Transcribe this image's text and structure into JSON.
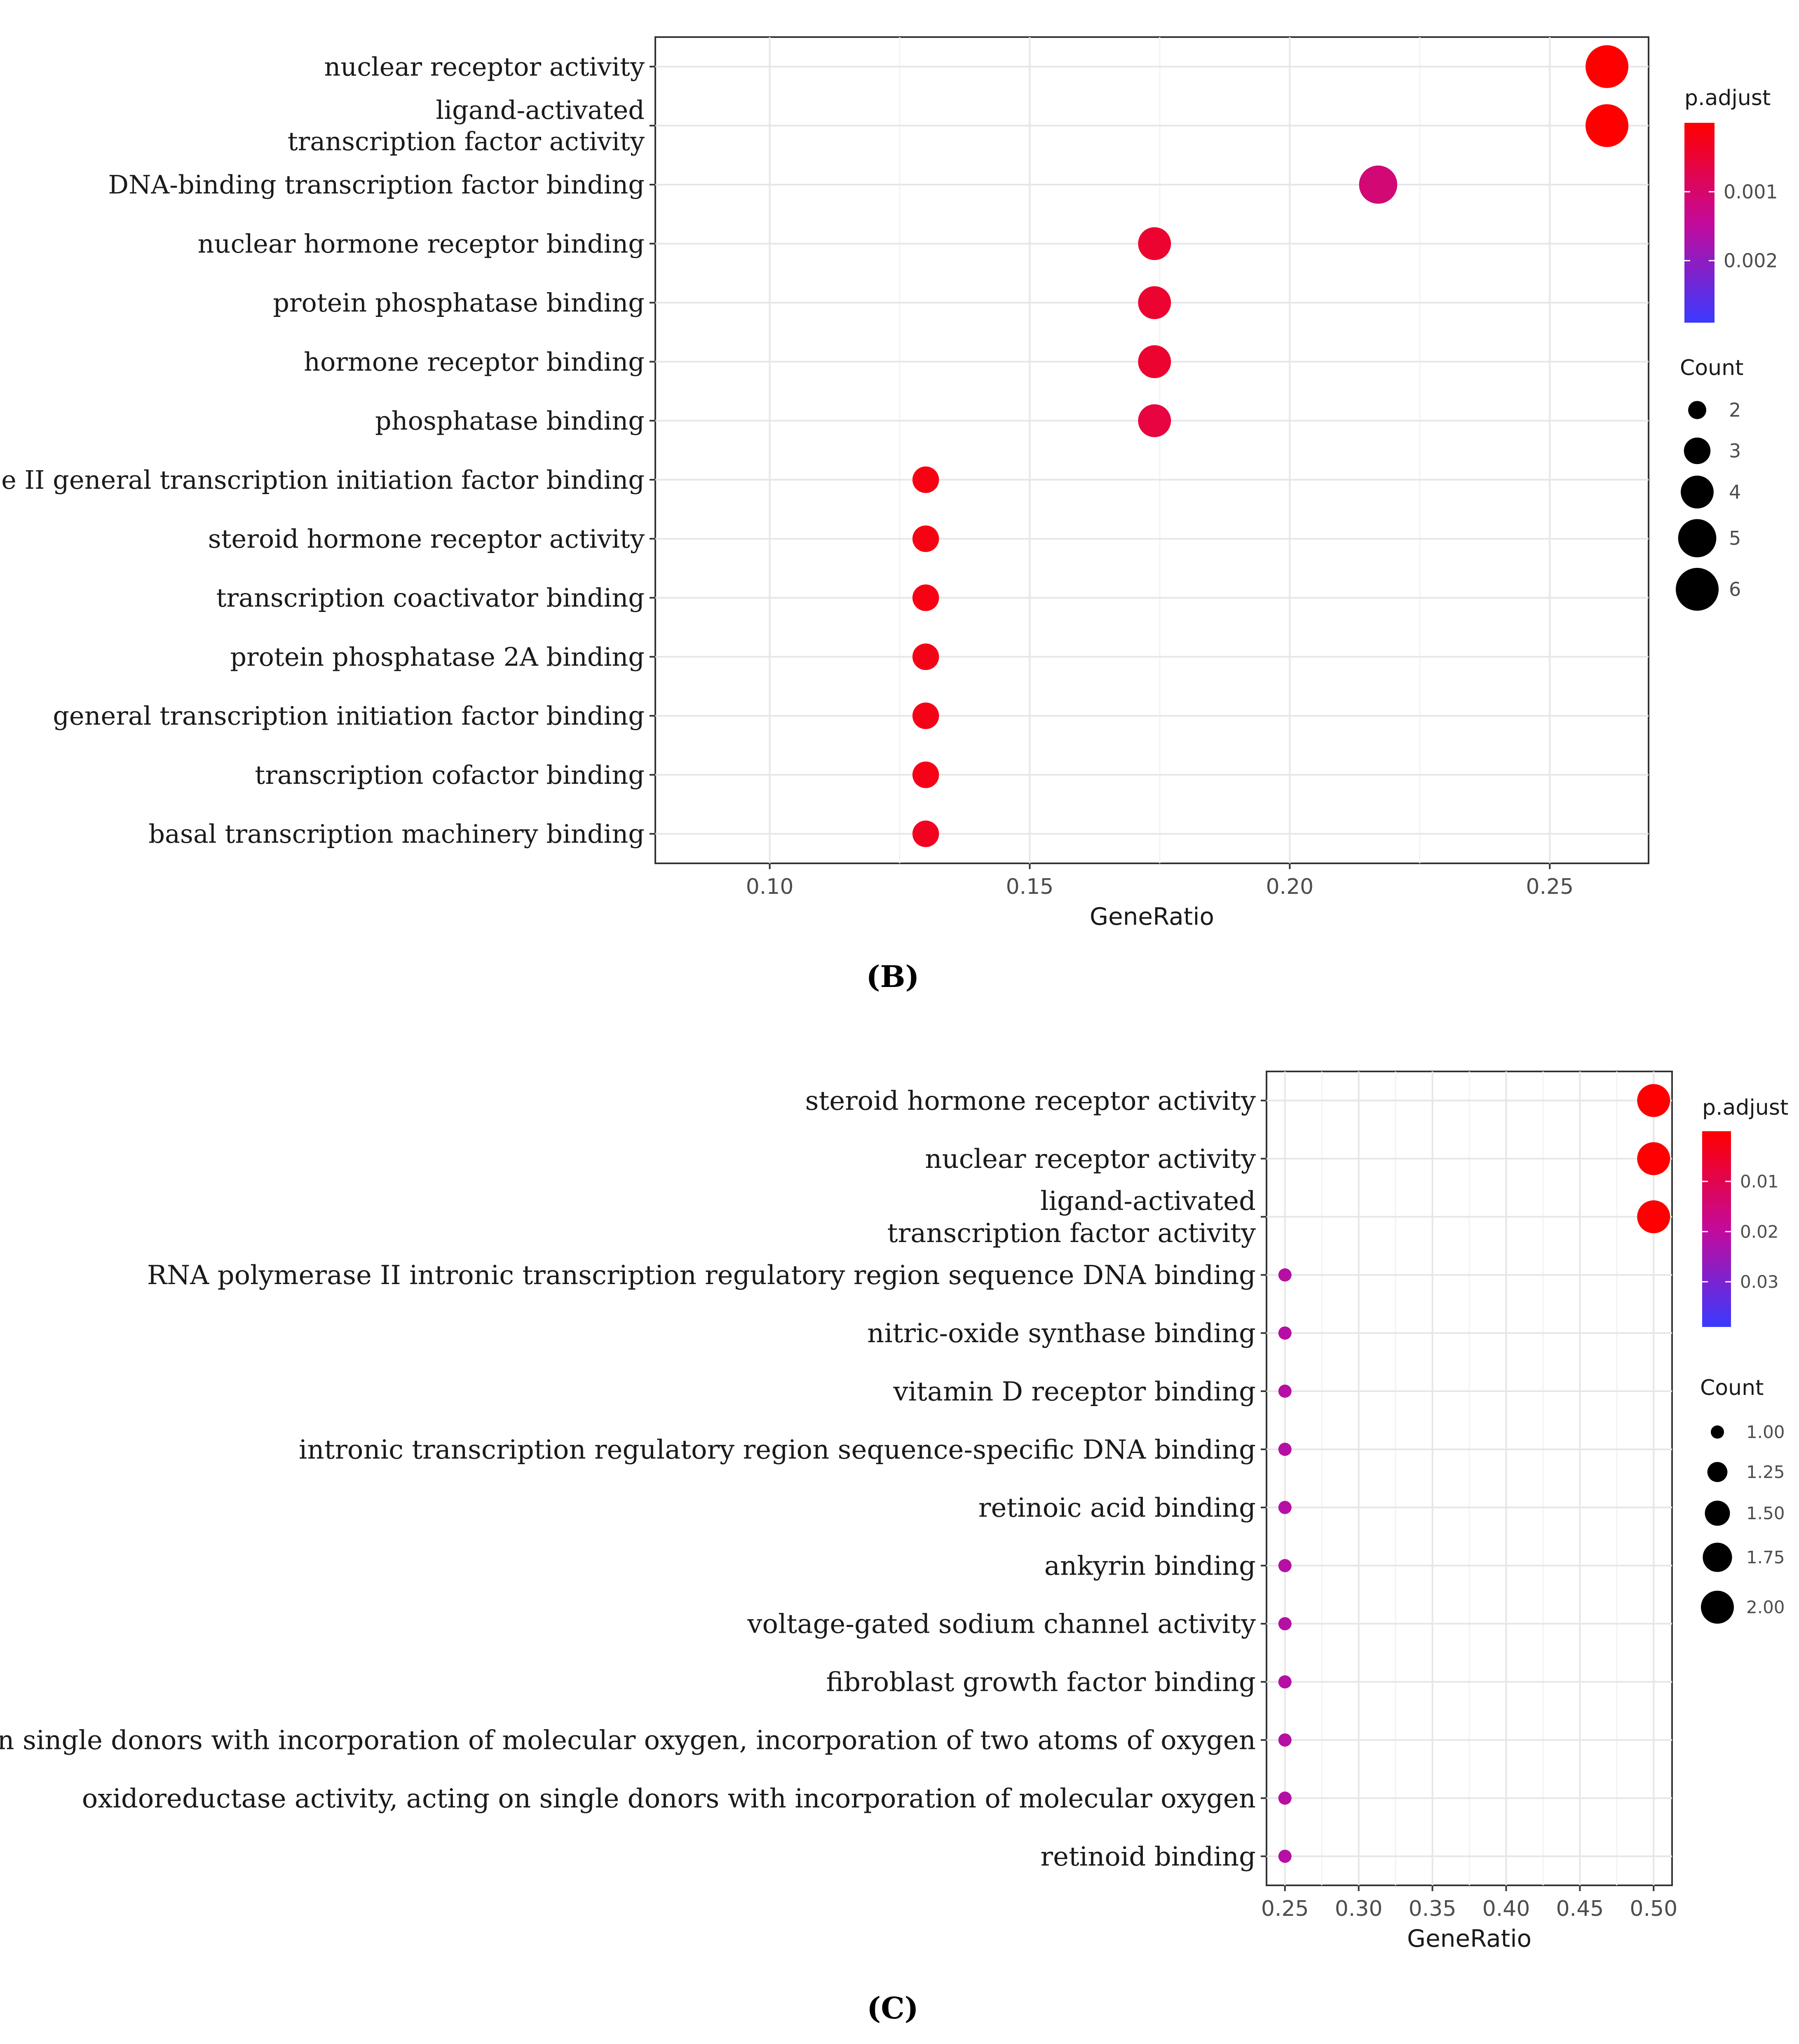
{
  "chart_data": [
    {
      "type": "scatter",
      "panel": "B",
      "caption": "(B)",
      "xlabel": "GeneRatio",
      "ylabel": "",
      "xlim": [
        0.078,
        0.269
      ],
      "xticks": [
        0.1,
        0.15,
        0.2,
        0.25
      ],
      "xtick_labels": [
        "0.10",
        "0.15",
        "0.20",
        "0.25"
      ],
      "grid": true,
      "legend_position": "right",
      "categories": [
        [
          "nuclear receptor activity"
        ],
        [
          "ligand-activated",
          "transcription factor activity"
        ],
        [
          "DNA-binding transcription factor binding"
        ],
        [
          "nuclear hormone receptor binding"
        ],
        [
          "protein phosphatase binding"
        ],
        [
          "hormone receptor binding"
        ],
        [
          "phosphatase binding"
        ],
        [
          "RNA polymerase II general transcription initiation factor binding"
        ],
        [
          "steroid hormone receptor activity"
        ],
        [
          "transcription coactivator binding"
        ],
        [
          "protein phosphatase 2A binding"
        ],
        [
          "general transcription initiation factor binding"
        ],
        [
          "transcription cofactor binding"
        ],
        [
          "basal transcription machinery binding"
        ]
      ],
      "gene_ratio": [
        0.261,
        0.261,
        0.217,
        0.174,
        0.174,
        0.174,
        0.174,
        0.13,
        0.13,
        0.13,
        0.13,
        0.13,
        0.13,
        0.13
      ],
      "count": [
        6,
        6,
        5,
        4,
        4,
        4,
        4,
        3,
        3,
        3,
        3,
        3,
        3,
        3
      ],
      "p_adjust": [
        1e-05,
        1e-05,
        0.0011,
        0.00045,
        0.00045,
        0.00045,
        0.0006,
        0.00018,
        0.00018,
        0.00018,
        0.00022,
        0.00022,
        0.00022,
        0.0003
      ],
      "color_legend": {
        "title": "p.adjust",
        "range": [
          0.0,
          0.0029
        ],
        "ticks": [
          0.001,
          0.002
        ],
        "tick_labels": [
          "0.001",
          "0.002"
        ],
        "low_color": "#ff0000",
        "high_color": "#3a3aff"
      },
      "size_legend": {
        "title": "Count",
        "values": [
          2,
          3,
          4,
          5,
          6
        ],
        "labels": [
          "2",
          "3",
          "4",
          "5",
          "6"
        ],
        "range": [
          2,
          6
        ]
      }
    },
    {
      "type": "scatter",
      "panel": "C",
      "caption": "(C)",
      "xlabel": "GeneRatio",
      "ylabel": "",
      "xlim": [
        0.2375,
        0.5125
      ],
      "xticks": [
        0.25,
        0.3,
        0.35,
        0.4,
        0.45,
        0.5
      ],
      "xtick_labels": [
        "0.25",
        "0.30",
        "0.35",
        "0.40",
        "0.45",
        "0.50"
      ],
      "grid": true,
      "legend_position": "right",
      "categories": [
        [
          "steroid hormone receptor activity"
        ],
        [
          "nuclear receptor activity"
        ],
        [
          "ligand-activated",
          "transcription factor activity"
        ],
        [
          "RNA polymerase II intronic transcription regulatory region sequence DNA binding"
        ],
        [
          "nitric-oxide synthase binding"
        ],
        [
          "vitamin D receptor binding"
        ],
        [
          "intronic transcription regulatory region sequence-specific DNA binding"
        ],
        [
          "retinoic acid binding"
        ],
        [
          "ankyrin binding"
        ],
        [
          "voltage-gated sodium channel  activity"
        ],
        [
          "fibroblast growth factor binding"
        ],
        [
          "oxidoreductase activity, acting on single donors with incorporation of molecular oxygen, incorporation of two atoms of oxygen"
        ],
        [
          "oxidoreductase activity, acting on single donors with incorporation of molecular oxygen"
        ],
        [
          "retinoid binding"
        ]
      ],
      "gene_ratio": [
        0.5,
        0.5,
        0.5,
        0.25,
        0.25,
        0.25,
        0.25,
        0.25,
        0.25,
        0.25,
        0.25,
        0.25,
        0.25,
        0.25
      ],
      "count": [
        2,
        2,
        2,
        1,
        1,
        1,
        1,
        1,
        1,
        1,
        1,
        1,
        1,
        1
      ],
      "p_adjust": [
        0.0003,
        0.0003,
        0.0003,
        0.0215,
        0.0215,
        0.0215,
        0.0215,
        0.0215,
        0.0215,
        0.0215,
        0.0215,
        0.0215,
        0.0215,
        0.0215
      ],
      "color_legend": {
        "title": "p.adjust",
        "range": [
          0.0,
          0.039
        ],
        "ticks": [
          0.01,
          0.02,
          0.03
        ],
        "tick_labels": [
          "0.01",
          "0.02",
          "0.03"
        ],
        "low_color": "#ff0000",
        "high_color": "#3a3aff"
      },
      "size_legend": {
        "title": "Count",
        "values": [
          1.0,
          1.25,
          1.5,
          1.75,
          2.0
        ],
        "labels": [
          "1.00",
          "1.25",
          "1.50",
          "1.75",
          "2.00"
        ],
        "range": [
          1,
          2
        ]
      }
    }
  ]
}
